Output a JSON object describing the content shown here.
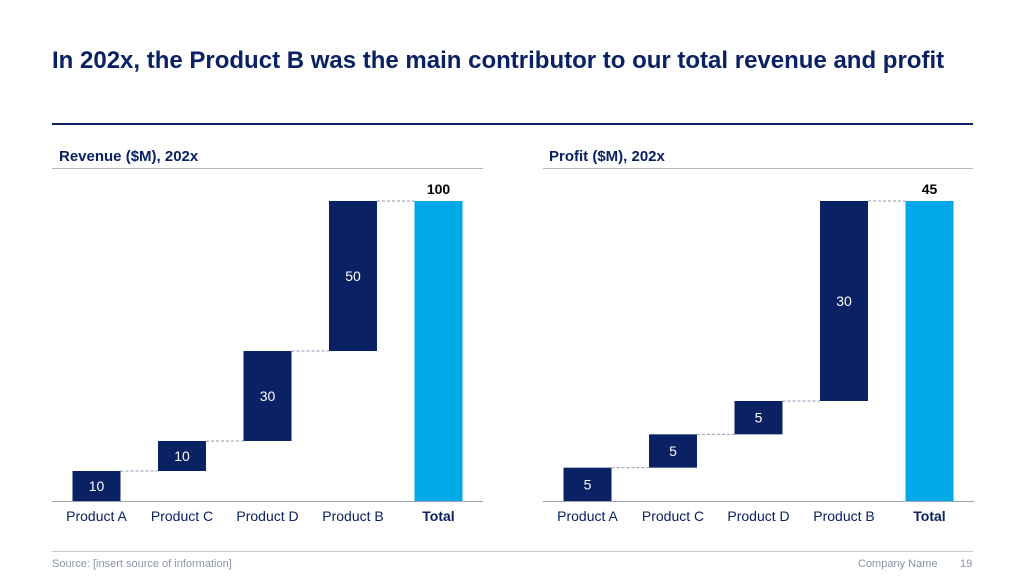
{
  "slide": {
    "title": "In 202x, the Product B was the main contributor to our total revenue and profit",
    "footer": {
      "source": "Source: [insert source of information]",
      "company": "Company Name",
      "page": "19"
    }
  },
  "colors": {
    "bar": "#0a2163",
    "total": "#00a8e8",
    "connector": "#8e9bb2"
  },
  "chart_data": [
    {
      "type": "waterfall",
      "title": "Revenue ($M), 202x",
      "categories": [
        "Product A",
        "Product C",
        "Product D",
        "Product B",
        "Total"
      ],
      "values": [
        10,
        10,
        30,
        50,
        100
      ],
      "labels": [
        "10",
        "10",
        "30",
        "50",
        "100"
      ],
      "ylim": [
        0,
        100
      ]
    },
    {
      "type": "waterfall",
      "title": "Profit ($M), 202x",
      "categories": [
        "Product A",
        "Product C",
        "Product D",
        "Product B",
        "Total"
      ],
      "values": [
        5,
        5,
        5,
        30,
        45
      ],
      "labels": [
        "5",
        "5",
        "5",
        "30",
        "45"
      ],
      "ylim": [
        0,
        45
      ]
    }
  ]
}
